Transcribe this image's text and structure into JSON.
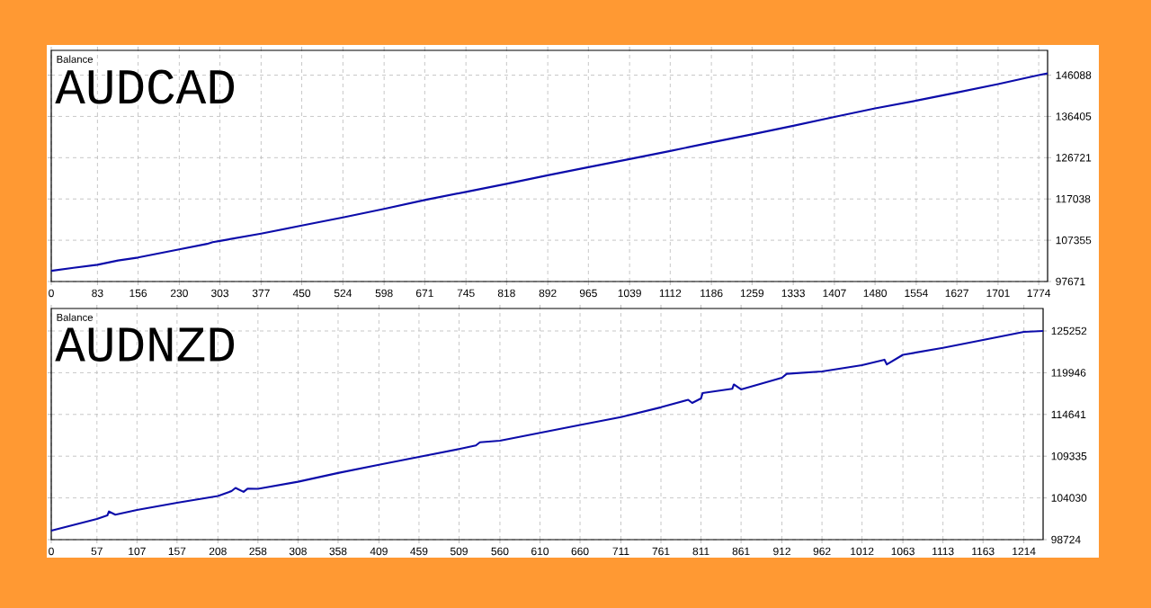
{
  "chart_data": [
    {
      "type": "line",
      "title": "AUDCAD",
      "ylabel": "Balance",
      "x": [
        0,
        40,
        83,
        120,
        156,
        230,
        280,
        290,
        303,
        377,
        450,
        524,
        598,
        671,
        745,
        818,
        892,
        965,
        1039,
        1112,
        1186,
        1259,
        1333,
        1407,
        1480,
        1554,
        1627,
        1701,
        1774,
        1790
      ],
      "series": [
        {
          "color": "#0c0caa",
          "values": [
            100170,
            100900,
            101600,
            102600,
            103300,
            105200,
            106500,
            106900,
            107200,
            108900,
            110790,
            112700,
            114700,
            116800,
            118700,
            120600,
            122600,
            124500,
            126400,
            128300,
            130300,
            132200,
            134200,
            136300,
            138300,
            140100,
            142000,
            144000,
            146088,
            146500
          ]
        }
      ],
      "xlim": [
        0,
        1790
      ],
      "ylim": [
        97671,
        151900
      ],
      "xticks": [
        0,
        83,
        156,
        230,
        303,
        377,
        450,
        524,
        598,
        671,
        745,
        818,
        892,
        965,
        1039,
        1112,
        1186,
        1259,
        1333,
        1407,
        1480,
        1554,
        1627,
        1701,
        1774
      ],
      "yticks": [
        97671,
        107355,
        117038,
        126721,
        136405,
        146088
      ],
      "grid": true
    },
    {
      "type": "line",
      "title": "AUDNZD",
      "ylabel": "Balance",
      "x": [
        0,
        57,
        70,
        72,
        80,
        107,
        157,
        208,
        225,
        230,
        240,
        245,
        258,
        308,
        358,
        409,
        459,
        509,
        530,
        535,
        560,
        610,
        660,
        711,
        761,
        795,
        800,
        811,
        813,
        850,
        852,
        861,
        912,
        918,
        962,
        1012,
        1040,
        1043,
        1063,
        1113,
        1163,
        1214,
        1238
      ],
      "series": [
        {
          "color": "#0c0caa",
          "values": [
            99870,
            101350,
            101800,
            102300,
            101900,
            102500,
            103410,
            104270,
            104900,
            105300,
            104800,
            105200,
            105180,
            106080,
            107200,
            108250,
            109240,
            110250,
            110700,
            111100,
            111300,
            112300,
            113300,
            114300,
            115550,
            116500,
            116100,
            116673,
            117360,
            117900,
            118450,
            117820,
            119300,
            119800,
            120100,
            120900,
            121600,
            121000,
            122220,
            123110,
            124100,
            125140,
            125252
          ]
        }
      ],
      "xlim": [
        0,
        1238
      ],
      "ylim": [
        98724,
        128110
      ],
      "xticks": [
        0,
        57,
        107,
        157,
        208,
        258,
        308,
        358,
        409,
        459,
        509,
        560,
        610,
        660,
        711,
        761,
        811,
        861,
        912,
        962,
        1012,
        1063,
        1113,
        1163,
        1214
      ],
      "yticks": [
        98724,
        104030,
        109335,
        114641,
        119946,
        125252
      ],
      "grid": true
    }
  ]
}
